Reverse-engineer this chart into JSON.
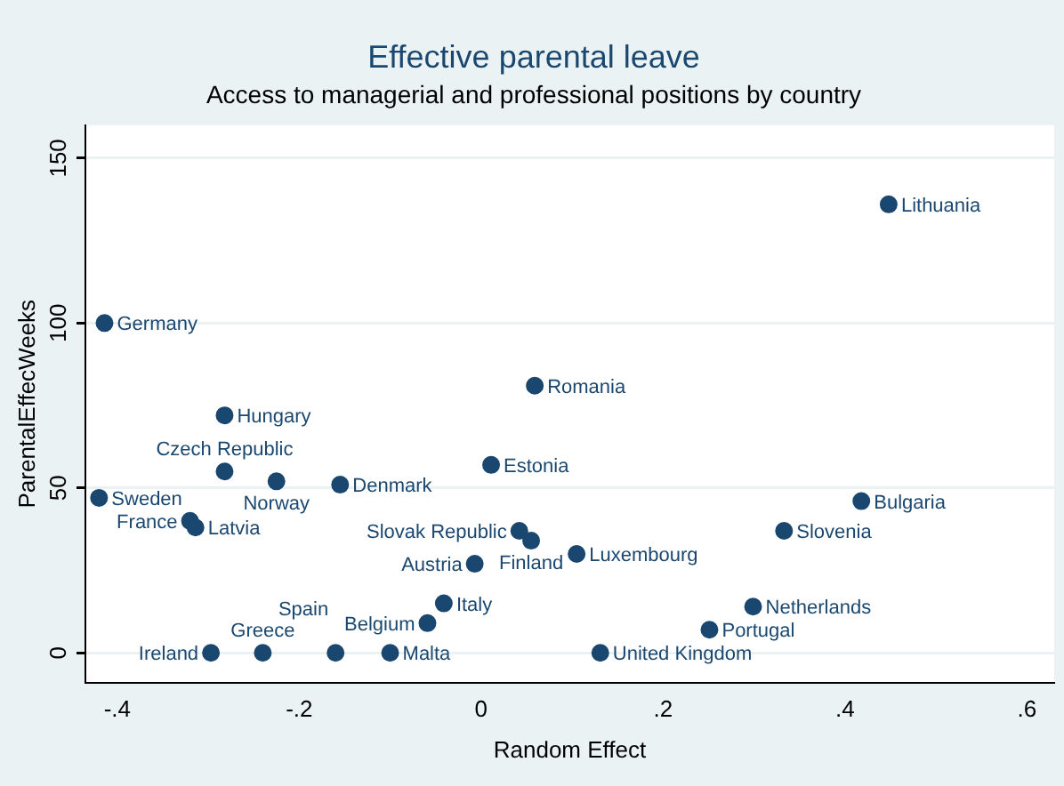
{
  "chart_data": {
    "type": "scatter",
    "title": "Effective parental leave",
    "subtitle": "Access to managerial and professional positions by country",
    "xlabel": "Random Effect",
    "ylabel": "ParentalEffecWeeks",
    "series": [
      {
        "color": "#1a476f",
        "x": [
          0.448,
          -0.414,
          0.059,
          -0.282,
          -0.282,
          -0.225,
          -0.155,
          0.011,
          -0.42,
          -0.32,
          -0.314,
          0.418,
          0.333,
          0.042,
          0.055,
          0.105,
          -0.007,
          -0.041,
          -0.059,
          0.299,
          0.251,
          0.131,
          -0.297,
          -0.24,
          -0.16,
          -0.1
        ],
        "values": [
          136,
          100,
          81,
          72,
          55,
          52,
          51,
          57,
          47,
          40,
          38,
          46,
          37,
          37,
          34,
          30,
          27,
          15,
          9,
          14,
          7,
          0,
          0,
          0,
          0,
          0
        ],
        "value_labels": [
          "Lithuania",
          "Germany",
          "Romania",
          "Hungary",
          "Czech Republic",
          "Norway",
          "Denmark",
          "Estonia",
          "Sweden",
          "France",
          "Latvia",
          "Bulgaria",
          "Slovenia",
          "Slovak Republic",
          "Finland",
          "Luxembourg",
          "Austria",
          "Italy",
          "Belgium",
          "Netherlands",
          "Portugal",
          "United Kingdom",
          "Ireland",
          "Greece",
          "Spain",
          "Malta"
        ]
      }
    ],
    "xlim": [
      -0.435,
      0.63
    ],
    "ylim": [
      -9,
      160
    ],
    "xticks": [
      {
        "value": -0.4,
        "label": "-.4"
      },
      {
        "value": -0.2,
        "label": "-.2"
      },
      0,
      {
        "value": 0.2,
        "label": ".2"
      },
      {
        "value": 0.4,
        "label": ".4"
      },
      {
        "value": 0.6,
        "label": ".6"
      }
    ],
    "yticks": [
      0,
      50,
      100,
      150
    ],
    "grid": "y",
    "legend": false,
    "marker": "circle"
  }
}
